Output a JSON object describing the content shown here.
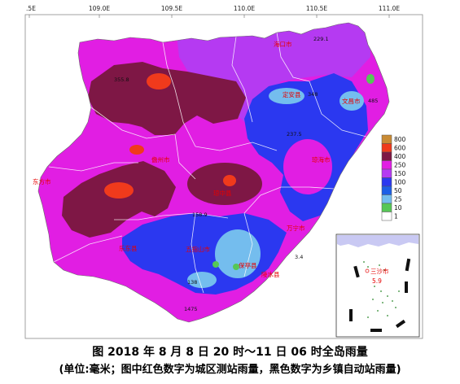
{
  "map": {
    "lon_ticks": [
      ".5E",
      "109.0E",
      "109.5E",
      "110.0E",
      "110.5E",
      "111.0E"
    ],
    "legend": [
      {
        "label": "800",
        "color": "#c98b34"
      },
      {
        "label": "600",
        "color": "#f03a1c"
      },
      {
        "label": "400",
        "color": "#7e1745"
      },
      {
        "label": "250",
        "color": "#e11ee3"
      },
      {
        "label": "150",
        "color": "#b53af2"
      },
      {
        "label": "100",
        "color": "#2b38f0"
      },
      {
        "label": "50",
        "color": "#1d5fe6"
      },
      {
        "label": "25",
        "color": "#74bdee"
      },
      {
        "label": "10",
        "color": "#56c756"
      },
      {
        "label": "1",
        "color": "#ffffff"
      }
    ],
    "cities": [
      "海口市",
      "定安县",
      "文昌市",
      "琼海市",
      "儋州市",
      "琼中县",
      "东方市",
      "万宁市",
      "乐东县",
      "五指山市",
      "保亭县",
      "陵水县"
    ],
    "stations": [
      "229.1",
      "355.8",
      "348",
      "485",
      "237.5",
      "158.9",
      "3.4",
      "138",
      "1475"
    ],
    "inset": {
      "city": "三沙市",
      "value": "5.9"
    }
  },
  "caption": {
    "title": "图 2018 年 8 月 8 日 20 时～11 日 06 时全岛雨量",
    "note": "(单位:毫米；图中红色数字为城区测站雨量，黑色数字为乡镇自动站雨量)"
  }
}
